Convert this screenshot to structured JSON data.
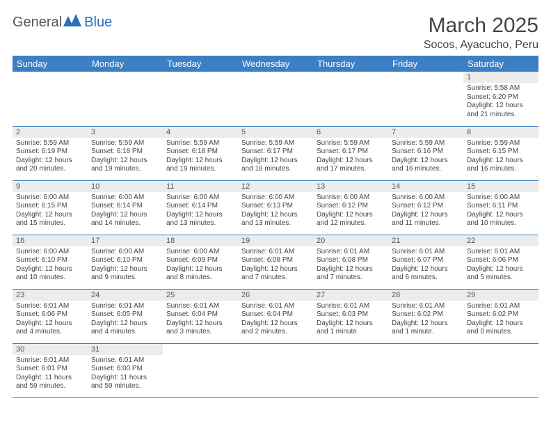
{
  "logo": {
    "text1": "General",
    "text2": "Blue"
  },
  "title": "March 2025",
  "location": "Socos, Ayacucho, Peru",
  "colors": {
    "header_bg": "#3b7fc4",
    "header_fg": "#ffffff",
    "daynum_bg": "#ececec",
    "row_border": "#3b7fc4",
    "text": "#444444",
    "logo_blue": "#2a6fb5"
  },
  "day_headers": [
    "Sunday",
    "Monday",
    "Tuesday",
    "Wednesday",
    "Thursday",
    "Friday",
    "Saturday"
  ],
  "weeks": [
    [
      null,
      null,
      null,
      null,
      null,
      null,
      {
        "n": "1",
        "sr": "5:58 AM",
        "ss": "6:20 PM",
        "dl": "12 hours and 21 minutes."
      }
    ],
    [
      {
        "n": "2",
        "sr": "5:59 AM",
        "ss": "6:19 PM",
        "dl": "12 hours and 20 minutes."
      },
      {
        "n": "3",
        "sr": "5:59 AM",
        "ss": "6:18 PM",
        "dl": "12 hours and 19 minutes."
      },
      {
        "n": "4",
        "sr": "5:59 AM",
        "ss": "6:18 PM",
        "dl": "12 hours and 19 minutes."
      },
      {
        "n": "5",
        "sr": "5:59 AM",
        "ss": "6:17 PM",
        "dl": "12 hours and 18 minutes."
      },
      {
        "n": "6",
        "sr": "5:59 AM",
        "ss": "6:17 PM",
        "dl": "12 hours and 17 minutes."
      },
      {
        "n": "7",
        "sr": "5:59 AM",
        "ss": "6:16 PM",
        "dl": "12 hours and 16 minutes."
      },
      {
        "n": "8",
        "sr": "5:59 AM",
        "ss": "6:15 PM",
        "dl": "12 hours and 16 minutes."
      }
    ],
    [
      {
        "n": "9",
        "sr": "6:00 AM",
        "ss": "6:15 PM",
        "dl": "12 hours and 15 minutes."
      },
      {
        "n": "10",
        "sr": "6:00 AM",
        "ss": "6:14 PM",
        "dl": "12 hours and 14 minutes."
      },
      {
        "n": "11",
        "sr": "6:00 AM",
        "ss": "6:14 PM",
        "dl": "12 hours and 13 minutes."
      },
      {
        "n": "12",
        "sr": "6:00 AM",
        "ss": "6:13 PM",
        "dl": "12 hours and 13 minutes."
      },
      {
        "n": "13",
        "sr": "6:00 AM",
        "ss": "6:12 PM",
        "dl": "12 hours and 12 minutes."
      },
      {
        "n": "14",
        "sr": "6:00 AM",
        "ss": "6:12 PM",
        "dl": "12 hours and 11 minutes."
      },
      {
        "n": "15",
        "sr": "6:00 AM",
        "ss": "6:11 PM",
        "dl": "12 hours and 10 minutes."
      }
    ],
    [
      {
        "n": "16",
        "sr": "6:00 AM",
        "ss": "6:10 PM",
        "dl": "12 hours and 10 minutes."
      },
      {
        "n": "17",
        "sr": "6:00 AM",
        "ss": "6:10 PM",
        "dl": "12 hours and 9 minutes."
      },
      {
        "n": "18",
        "sr": "6:00 AM",
        "ss": "6:09 PM",
        "dl": "12 hours and 8 minutes."
      },
      {
        "n": "19",
        "sr": "6:01 AM",
        "ss": "6:08 PM",
        "dl": "12 hours and 7 minutes."
      },
      {
        "n": "20",
        "sr": "6:01 AM",
        "ss": "6:08 PM",
        "dl": "12 hours and 7 minutes."
      },
      {
        "n": "21",
        "sr": "6:01 AM",
        "ss": "6:07 PM",
        "dl": "12 hours and 6 minutes."
      },
      {
        "n": "22",
        "sr": "6:01 AM",
        "ss": "6:06 PM",
        "dl": "12 hours and 5 minutes."
      }
    ],
    [
      {
        "n": "23",
        "sr": "6:01 AM",
        "ss": "6:06 PM",
        "dl": "12 hours and 4 minutes."
      },
      {
        "n": "24",
        "sr": "6:01 AM",
        "ss": "6:05 PM",
        "dl": "12 hours and 4 minutes."
      },
      {
        "n": "25",
        "sr": "6:01 AM",
        "ss": "6:04 PM",
        "dl": "12 hours and 3 minutes."
      },
      {
        "n": "26",
        "sr": "6:01 AM",
        "ss": "6:04 PM",
        "dl": "12 hours and 2 minutes."
      },
      {
        "n": "27",
        "sr": "6:01 AM",
        "ss": "6:03 PM",
        "dl": "12 hours and 1 minute."
      },
      {
        "n": "28",
        "sr": "6:01 AM",
        "ss": "6:02 PM",
        "dl": "12 hours and 1 minute."
      },
      {
        "n": "29",
        "sr": "6:01 AM",
        "ss": "6:02 PM",
        "dl": "12 hours and 0 minutes."
      }
    ],
    [
      {
        "n": "30",
        "sr": "6:01 AM",
        "ss": "6:01 PM",
        "dl": "11 hours and 59 minutes."
      },
      {
        "n": "31",
        "sr": "6:01 AM",
        "ss": "6:00 PM",
        "dl": "11 hours and 59 minutes."
      },
      null,
      null,
      null,
      null,
      null
    ]
  ],
  "labels": {
    "sunrise": "Sunrise:",
    "sunset": "Sunset:",
    "daylight": "Daylight:"
  }
}
